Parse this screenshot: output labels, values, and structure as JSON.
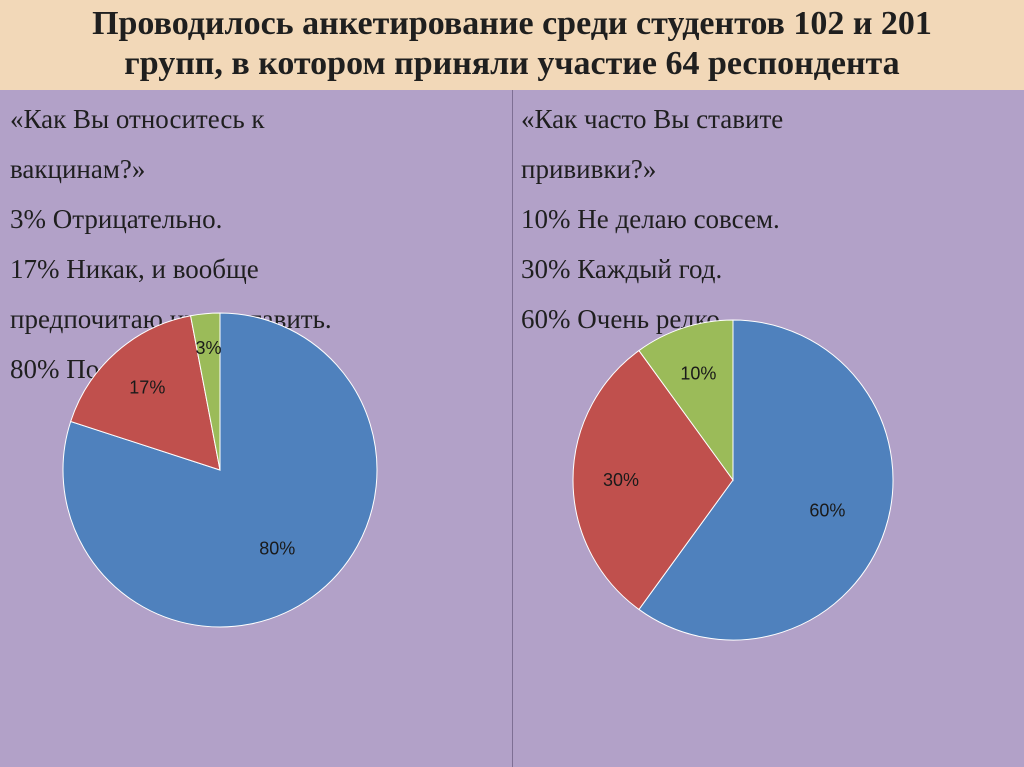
{
  "title_line1": "Проводилось анкетирование среди студентов 102 и 201",
  "title_line2": "групп, в котором приняли участие 64 респондента",
  "left_panel": {
    "lines": [
      "«Как Вы относитесь к",
      "вакцинам?»",
      "3% Отрицательно.",
      "17% Никак, и вообще",
      "предпочитаю их не ставить.",
      "80% Положительно."
    ]
  },
  "right_panel": {
    "lines": [
      "«Как часто Вы ставите",
      "прививки?»",
      "10% Не делаю совсем.",
      "30% Каждый год.",
      "60% Очень редко."
    ]
  },
  "chart_data": [
    {
      "type": "pie",
      "slices": [
        {
          "label": "80%",
          "value": 80,
          "color": "#4f81bd"
        },
        {
          "label": "17%",
          "value": 17,
          "color": "#c0504d"
        },
        {
          "label": "3%",
          "value": 3,
          "color": "#9bbb59"
        }
      ]
    },
    {
      "type": "pie",
      "slices": [
        {
          "label": "60%",
          "value": 60,
          "color": "#4f81bd"
        },
        {
          "label": "30%",
          "value": 30,
          "color": "#c0504d"
        },
        {
          "label": "10%",
          "value": 10,
          "color": "#9bbb59"
        }
      ]
    }
  ]
}
